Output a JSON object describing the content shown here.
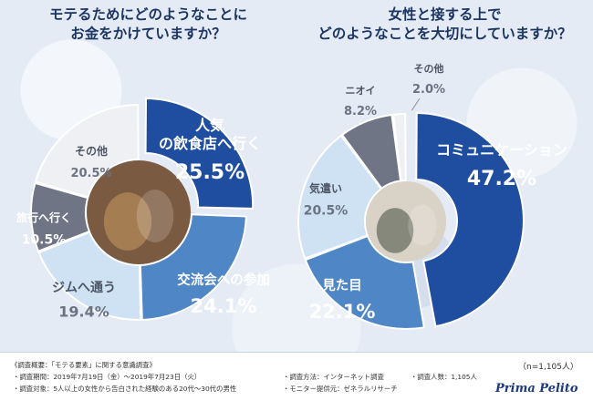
{
  "titles": {
    "left_line1": "モテるためにどのようなことに",
    "left_line2": "お金をかけていますか？",
    "right_line1": "女性と接する上で",
    "right_line2": "どのようなことを大切にしていますか？"
  },
  "colors": {
    "dark_blue": "#1f4ea1",
    "mid_blue": "#4e86c6",
    "light_blue": "#cfe2f3",
    "very_light": "#eef0f3",
    "gray": "#6f7585",
    "white": "#ffffff"
  },
  "chart_data": [
    {
      "type": "pie",
      "title": "モテるためにどのようなことにお金をかけていますか？",
      "slices": [
        {
          "label": "人気の飲食店へ行く",
          "value": 25.5,
          "value_label": "25.5%",
          "color": "#1f4ea1",
          "exploded": true
        },
        {
          "label": "交流会への参加",
          "value": 24.1,
          "value_label": "24.1%",
          "color": "#4e86c6",
          "exploded": false
        },
        {
          "label": "ジムへ通う",
          "value": 19.4,
          "value_label": "19.4%",
          "color": "#cfe2f3",
          "exploded": false
        },
        {
          "label": "旅行へ行く",
          "value": 10.5,
          "value_label": "10.5%",
          "color": "#6f7585",
          "exploded": false
        },
        {
          "label": "その他",
          "value": 20.5,
          "value_label": "20.5%",
          "color": "#eef0f3",
          "exploded": false
        }
      ]
    },
    {
      "type": "pie",
      "title": "女性と接する上でどのようなことを大切にしていますか？",
      "slices": [
        {
          "label": "コミュニケーション",
          "value": 47.2,
          "value_label": "47.2%",
          "color": "#1f4ea1",
          "exploded": true
        },
        {
          "label": "見た目",
          "value": 22.1,
          "value_label": "22.1%",
          "color": "#4e86c6",
          "exploded": false
        },
        {
          "label": "気遣い",
          "value": 20.5,
          "value_label": "20.5%",
          "color": "#cfe2f3",
          "exploded": false
        },
        {
          "label": "ニオイ",
          "value": 8.2,
          "value_label": "8.2%",
          "color": "#6f7585",
          "exploded": false
        },
        {
          "label": "その他",
          "value": 2.0,
          "value_label": "2.0%",
          "color": "#eef0f3",
          "exploded": false
        }
      ]
    }
  ],
  "footer": {
    "heading": "《調査概要：「モテる要素」に関する意識調査》",
    "period": "・調査期間：2019年7月19日（金）～2019年7月23日（火）",
    "target": "・調査対象：5人以上の女性から告白された経験のある20代～30代の男性",
    "method": "・調査方法：インターネット調査",
    "provider": "・モニター提供元：ゼネラルリサーチ",
    "count": "・調査人数：1,105人",
    "n": "（n=1,105人）",
    "brand": "Prima Pelito"
  }
}
